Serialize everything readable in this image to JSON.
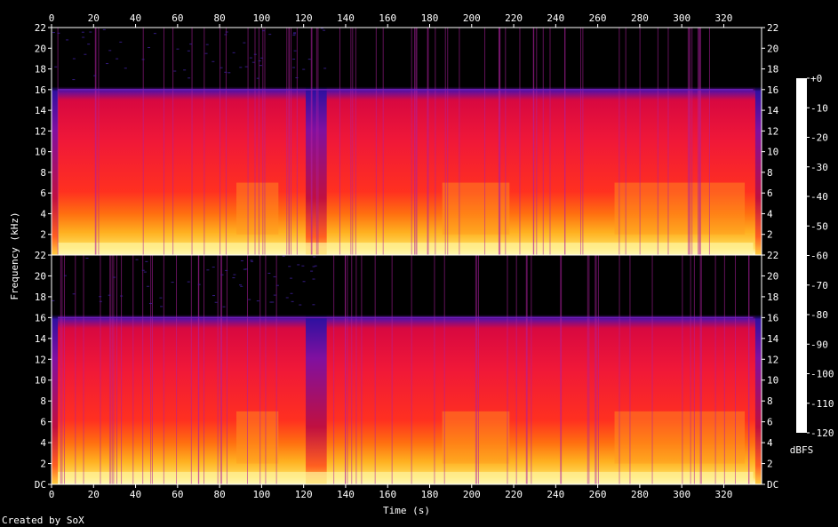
{
  "chart_data": {
    "type": "heatmap",
    "channels": 2,
    "xlabel": "Time (s)",
    "ylabel": "Frequency (kHz)",
    "xlim": [
      0,
      338
    ],
    "ylim_khz": [
      0,
      22
    ],
    "x_ticks": [
      "0",
      "20",
      "40",
      "60",
      "80",
      "100",
      "120",
      "140",
      "160",
      "180",
      "200",
      "220",
      "240",
      "260",
      "280",
      "300",
      "320"
    ],
    "x_tick_values": [
      0,
      20,
      40,
      60,
      80,
      100,
      120,
      140,
      160,
      180,
      200,
      220,
      240,
      260,
      280,
      300,
      320
    ],
    "y_ticks_top": [
      "22",
      "20",
      "18",
      "16",
      "14",
      "12",
      "10",
      "8",
      "6",
      "4",
      "2"
    ],
    "y_ticks_bottom": [
      "22",
      "20",
      "18",
      "16",
      "14",
      "12",
      "10",
      "8",
      "6",
      "4",
      "2",
      "DC"
    ],
    "y_tick_values_top": [
      22,
      20,
      18,
      16,
      14,
      12,
      10,
      8,
      6,
      4,
      2
    ],
    "y_tick_values_bottom": [
      22,
      20,
      18,
      16,
      14,
      12,
      10,
      8,
      6,
      4,
      2,
      0
    ],
    "lowpass_cutoff_khz": 16,
    "quiet_segments_s": [
      [
        0,
        3
      ],
      [
        121,
        131
      ],
      [
        335,
        338
      ]
    ],
    "bright_segments_s": [
      [
        88,
        108
      ],
      [
        186,
        218
      ],
      [
        268,
        330
      ]
    ],
    "colorbar": {
      "label": "dBFS",
      "range": [
        -120,
        0
      ],
      "ticks": [
        "+0",
        "-10",
        "-20",
        "-30",
        "-40",
        "-50",
        "-60",
        "-70",
        "-80",
        "-90",
        "-100",
        "-110",
        "-120"
      ],
      "tick_values": [
        0,
        -10,
        -20,
        -30,
        -40,
        -50,
        -60,
        -70,
        -80,
        -90,
        -100,
        -110,
        -120
      ],
      "colors": [
        "#ffffff",
        "#ffff80",
        "#ffd000",
        "#ff8000",
        "#ff3000",
        "#e00030",
        "#a00080",
        "#6000a0",
        "#2000a0",
        "#000040",
        "#000000"
      ]
    }
  },
  "footer": "Created by SoX"
}
